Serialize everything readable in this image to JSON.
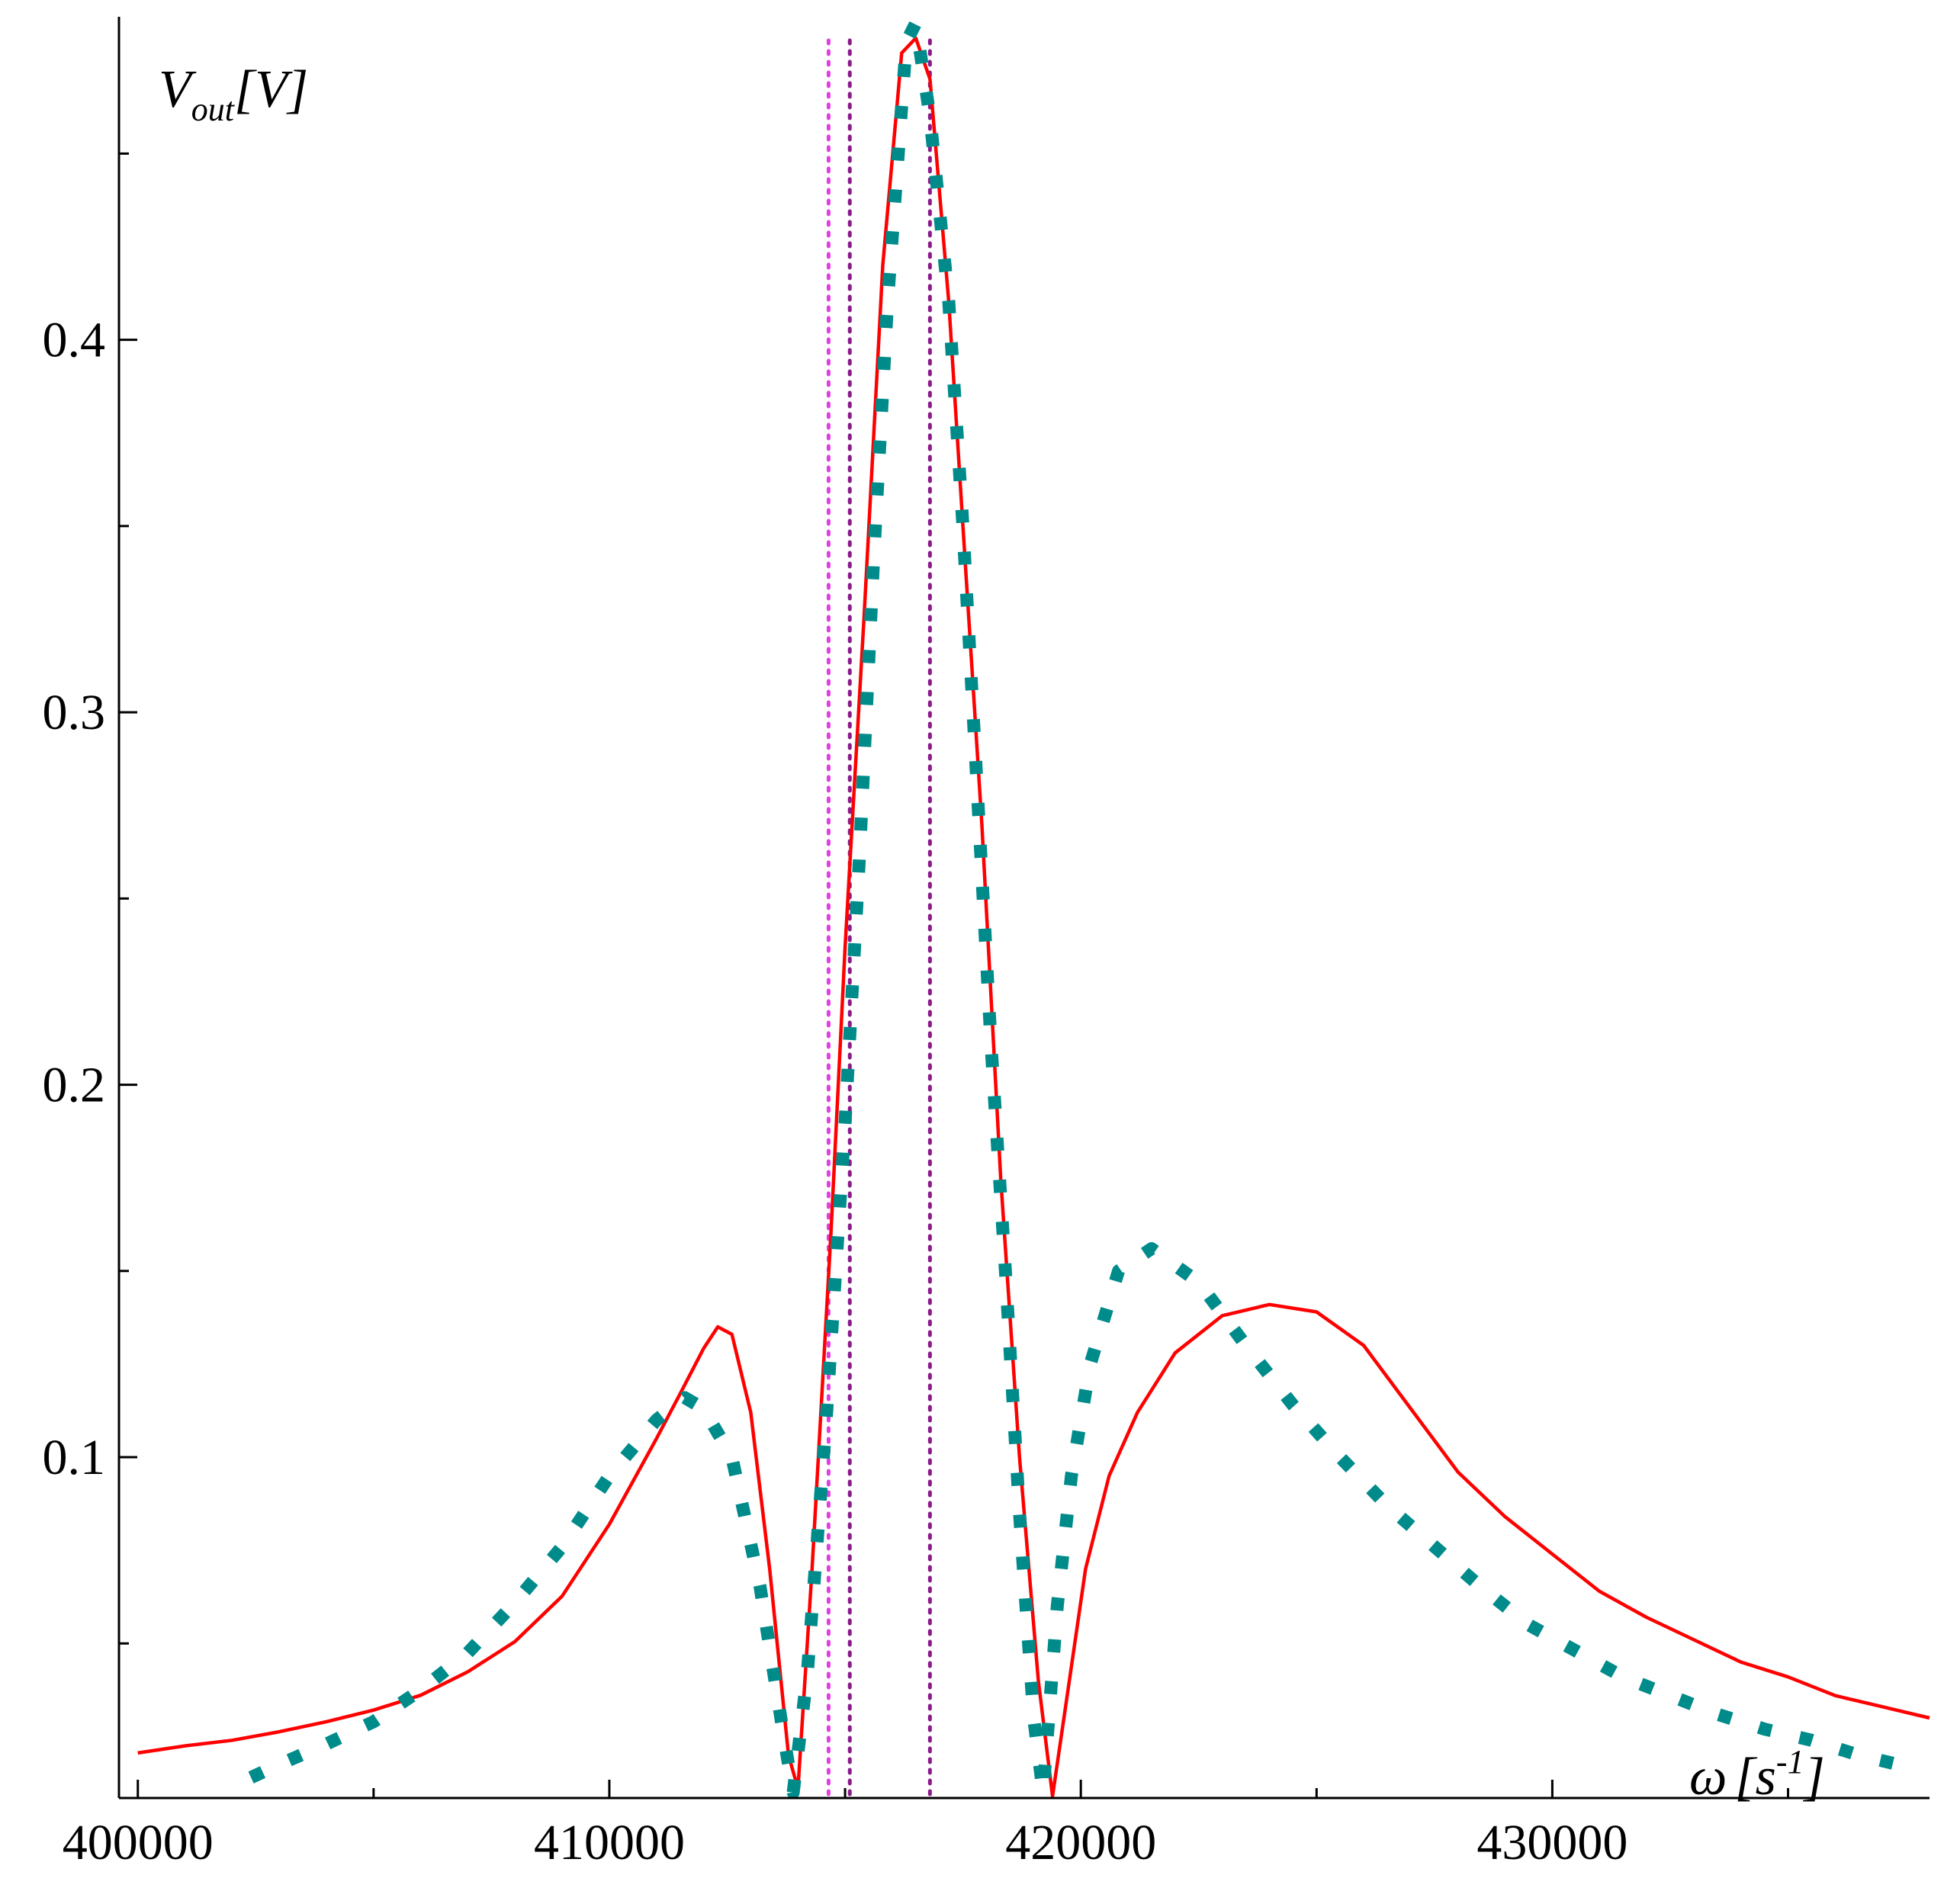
{
  "chart_data": {
    "type": "line",
    "title": "",
    "xlabel": {
      "symbol": "ω",
      "unit_open": "[s",
      "unit_exp": "-1",
      "unit_close": "]"
    },
    "ylabel": {
      "symbol": "V",
      "subscript": "out",
      "unit": "[V]"
    },
    "xlim": [
      399600,
      438000
    ],
    "ylim": [
      0.0085,
      0.4855
    ],
    "x_ticks": [
      400000,
      410000,
      420000,
      430000
    ],
    "x_tick_labels": [
      "400000",
      "410000",
      "420000",
      "430000"
    ],
    "x_minor_ticks": [
      405000,
      415000,
      425000,
      435000
    ],
    "y_ticks": [
      0.1,
      0.2,
      0.3,
      0.4
    ],
    "y_tick_labels": [
      "0.1",
      "0.2",
      "0.3",
      "0.4"
    ],
    "y_minor_ticks": [
      0.05,
      0.15,
      0.25,
      0.35,
      0.45
    ],
    "grid": false,
    "legend": "none",
    "series": [
      {
        "style": "solid",
        "color": "#ff0000",
        "points": [
          [
            400000,
            0.0206
          ],
          [
            401000,
            0.0225
          ],
          [
            402000,
            0.024
          ],
          [
            403000,
            0.0263
          ],
          [
            404000,
            0.029
          ],
          [
            405000,
            0.0321
          ],
          [
            406000,
            0.0361
          ],
          [
            407000,
            0.0424
          ],
          [
            408000,
            0.0505
          ],
          [
            409000,
            0.0627
          ],
          [
            410000,
            0.082
          ],
          [
            411000,
            0.105
          ],
          [
            411500,
            0.117
          ],
          [
            412000,
            0.1292
          ],
          [
            412300,
            0.135
          ],
          [
            412600,
            0.133
          ],
          [
            413000,
            0.112
          ],
          [
            413400,
            0.07
          ],
          [
            413800,
            0.02
          ],
          [
            414000,
            0.011
          ],
          [
            414300,
            0.07
          ],
          [
            414700,
            0.16
          ],
          [
            415000,
            0.237
          ],
          [
            415400,
            0.325
          ],
          [
            415800,
            0.42
          ],
          [
            416200,
            0.477
          ],
          [
            416500,
            0.481
          ],
          [
            416800,
            0.47
          ],
          [
            417200,
            0.41
          ],
          [
            417500,
            0.35
          ],
          [
            417900,
            0.27
          ],
          [
            418300,
            0.175
          ],
          [
            418700,
            0.1
          ],
          [
            419100,
            0.04
          ],
          [
            419400,
            0.009
          ],
          [
            419700,
            0.035
          ],
          [
            420100,
            0.07
          ],
          [
            420600,
            0.095
          ],
          [
            421200,
            0.112
          ],
          [
            422000,
            0.128
          ],
          [
            423000,
            0.138
          ],
          [
            424000,
            0.141
          ],
          [
            425000,
            0.139
          ],
          [
            426000,
            0.13
          ],
          [
            427000,
            0.113
          ],
          [
            428000,
            0.096
          ],
          [
            429000,
            0.084
          ],
          [
            430000,
            0.074
          ],
          [
            431000,
            0.064
          ],
          [
            432000,
            0.057
          ],
          [
            433000,
            0.051
          ],
          [
            434000,
            0.045
          ],
          [
            435000,
            0.041
          ],
          [
            436000,
            0.036
          ],
          [
            437000,
            0.033
          ],
          [
            438000,
            0.03
          ]
        ]
      },
      {
        "style": "dotted",
        "color": "#008b8b",
        "points": [
          [
            402400,
            0.014
          ],
          [
            403000,
            0.0175
          ],
          [
            404000,
            0.023
          ],
          [
            405000,
            0.029
          ],
          [
            406000,
            0.0375
          ],
          [
            407000,
            0.0475
          ],
          [
            408000,
            0.061
          ],
          [
            409000,
            0.076
          ],
          [
            410000,
            0.095
          ],
          [
            411000,
            0.11
          ],
          [
            411600,
            0.116
          ],
          [
            412000,
            0.113
          ],
          [
            412600,
            0.1
          ],
          [
            413200,
            0.065
          ],
          [
            413700,
            0.025
          ],
          [
            413900,
            0.01
          ],
          [
            414200,
            0.042
          ],
          [
            414600,
            0.11
          ],
          [
            415000,
            0.19
          ],
          [
            415300,
            0.26
          ],
          [
            415600,
            0.34
          ],
          [
            415900,
            0.41
          ],
          [
            416300,
            0.48
          ],
          [
            416500,
            0.485
          ],
          [
            416800,
            0.46
          ],
          [
            417200,
            0.41
          ],
          [
            417500,
            0.35
          ],
          [
            417800,
            0.28
          ],
          [
            418100,
            0.21
          ],
          [
            418400,
            0.15
          ],
          [
            418700,
            0.085
          ],
          [
            419000,
            0.03
          ],
          [
            419200,
            0.01
          ],
          [
            419500,
            0.06
          ],
          [
            419800,
            0.095
          ],
          [
            420200,
            0.125
          ],
          [
            420800,
            0.15
          ],
          [
            421500,
            0.156
          ],
          [
            422500,
            0.147
          ],
          [
            423500,
            0.13
          ],
          [
            424500,
            0.114
          ],
          [
            425500,
            0.1
          ],
          [
            426500,
            0.087
          ],
          [
            427500,
            0.076
          ],
          [
            428500,
            0.065
          ],
          [
            429500,
            0.055
          ],
          [
            430500,
            0.048
          ],
          [
            431500,
            0.041
          ],
          [
            432500,
            0.036
          ],
          [
            433500,
            0.031
          ],
          [
            434500,
            0.027
          ],
          [
            435500,
            0.024
          ],
          [
            436500,
            0.02
          ],
          [
            437500,
            0.017
          ]
        ]
      }
    ],
    "vertical_lines": [
      {
        "x": 414650,
        "color": "#e040e0",
        "style": "dotted"
      },
      {
        "x": 415100,
        "color": "#8b1a8b",
        "style": "dotted"
      },
      {
        "x": 416800,
        "color": "#8b1a8b",
        "style": "dotted"
      }
    ]
  }
}
